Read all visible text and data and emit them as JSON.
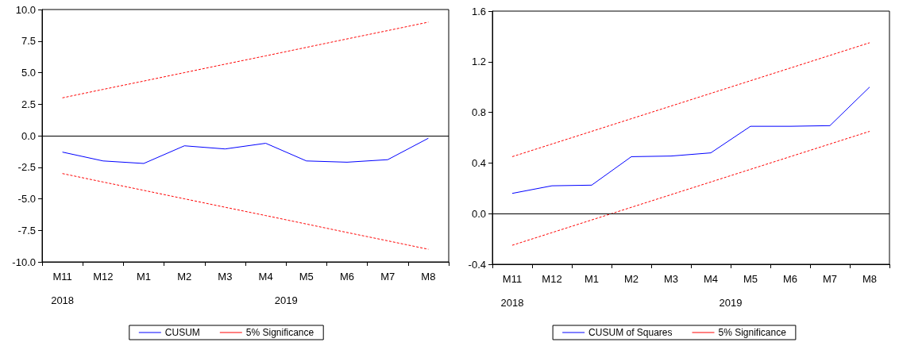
{
  "chart_data": [
    {
      "type": "line",
      "categories": [
        "M11",
        "M12",
        "M1",
        "M2",
        "M3",
        "M4",
        "M5",
        "M6",
        "M7",
        "M8"
      ],
      "ylim": [
        -10,
        10
      ],
      "yticks": [
        {
          "value": -10,
          "label": "-10.0"
        },
        {
          "value": -7.5,
          "label": "-7.5"
        },
        {
          "value": -5,
          "label": "-5.0"
        },
        {
          "value": -2.5,
          "label": "-2.5"
        },
        {
          "value": 0,
          "label": "0.0"
        },
        {
          "value": 2.5,
          "label": "2.5"
        },
        {
          "value": 5,
          "label": "5.0"
        },
        {
          "value": 7.5,
          "label": "7.5"
        },
        {
          "value": 10,
          "label": "10.0"
        }
      ],
      "grid": false,
      "legend": "bottom",
      "marker": "none",
      "series": [
        {
          "name": "CUSUM",
          "color": "#0000ff",
          "line_style": "solid",
          "values": [
            -1.3,
            -2.0,
            -2.2,
            -0.8,
            -1.05,
            -0.6,
            -2.0,
            -2.1,
            -1.9,
            -0.2
          ]
        },
        {
          "name": "5% Significance",
          "color": "#ff0000",
          "line_style": "dashed",
          "values": [
            3.0,
            3.67,
            4.33,
            5.0,
            5.67,
            6.33,
            7.0,
            7.67,
            8.33,
            9.0
          ]
        },
        {
          "color": "#ff0000",
          "line_style": "dashed",
          "values": [
            -3.0,
            -3.67,
            -4.33,
            -5.0,
            -5.67,
            -6.33,
            -7.0,
            -7.67,
            -8.33,
            -9.0
          ]
        }
      ],
      "ref_lines": [
        {
          "axis": "y",
          "value": 0,
          "color": "#000000"
        }
      ],
      "annotations": [
        "2018",
        "2019"
      ]
    },
    {
      "type": "line",
      "categories": [
        "M11",
        "M12",
        "M1",
        "M2",
        "M3",
        "M4",
        "M5",
        "M6",
        "M7",
        "M8"
      ],
      "ylim": [
        -0.4,
        1.6
      ],
      "yticks": [
        -0.4,
        {
          "value": 0,
          "label": "0.0"
        },
        0.4,
        0.8,
        1.2,
        1.6
      ],
      "grid": false,
      "legend": "bottom",
      "marker": "none",
      "series": [
        {
          "name": "CUSUM of Squares",
          "color": "#0000ff",
          "line_style": "solid",
          "values": [
            0.16,
            0.22,
            0.225,
            0.45,
            0.455,
            0.48,
            0.69,
            0.69,
            0.695,
            1.0
          ]
        },
        {
          "name": "5% Significance",
          "color": "#ff0000",
          "line_style": "dashed",
          "values": [
            0.45,
            0.55,
            0.65,
            0.75,
            0.85,
            0.95,
            1.05,
            1.15,
            1.25,
            1.35
          ]
        },
        {
          "color": "#ff0000",
          "line_style": "dashed",
          "values": [
            -0.25,
            -0.15,
            -0.05,
            0.05,
            0.15,
            0.25,
            0.35,
            0.45,
            0.55,
            0.65
          ]
        }
      ],
      "ref_lines": [
        {
          "axis": "y",
          "value": 0,
          "color": "#000000"
        }
      ],
      "annotations": [
        "2018",
        "2019"
      ]
    }
  ]
}
